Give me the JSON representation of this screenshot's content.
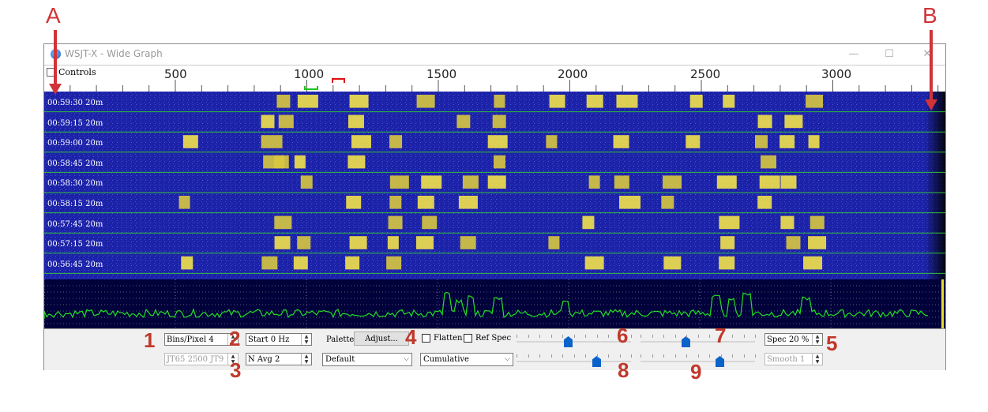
{
  "annotations": {
    "left_arrow_label": "A",
    "right_arrow_label": "B",
    "numbers": [
      "1",
      "2",
      "3",
      "4",
      "5",
      "6",
      "7",
      "8",
      "9"
    ]
  },
  "window": {
    "title": "WSJT-X - Wide Graph",
    "minimize": "—",
    "maximize": "☐",
    "close": "✕"
  },
  "scale": {
    "controls_label": "Controls",
    "freq_labels": [
      "500",
      "1000",
      "1500",
      "2000",
      "2500",
      "3000"
    ]
  },
  "waterfall": {
    "timestamps": [
      {
        "time": "00:59:30",
        "band": "20m"
      },
      {
        "time": "00:59:15",
        "band": "20m"
      },
      {
        "time": "00:59:00",
        "band": "20m"
      },
      {
        "time": "00:58:45",
        "band": "20m"
      },
      {
        "time": "00:58:30",
        "band": "20m"
      },
      {
        "time": "00:58:15",
        "band": "20m"
      },
      {
        "time": "00:57:45",
        "band": "20m"
      },
      {
        "time": "00:57:15",
        "band": "20m"
      },
      {
        "time": "00:56:45",
        "band": "20m"
      }
    ]
  },
  "controls": {
    "bins_per_pixel": "Bins/Pixel  4",
    "start_freq": "Start 0 Hz",
    "jt65_label": "JT65  2500  JT9",
    "n_avg": "N Avg 2",
    "palette_label": "Palette",
    "adjust_button": "Adjust...",
    "palette_value": "Default",
    "spectrum_mode": "Cumulative",
    "flatten_label": "Flatten",
    "ref_spec_label": "Ref Spec",
    "spec_pct": "Spec 20 %",
    "smooth": "Smooth  1"
  },
  "colors": {
    "waterfall_bg": "#1a1a9a",
    "signal": "#f0e04a",
    "spectrum_line": "#00e000",
    "annotation_red": "#d13438"
  }
}
